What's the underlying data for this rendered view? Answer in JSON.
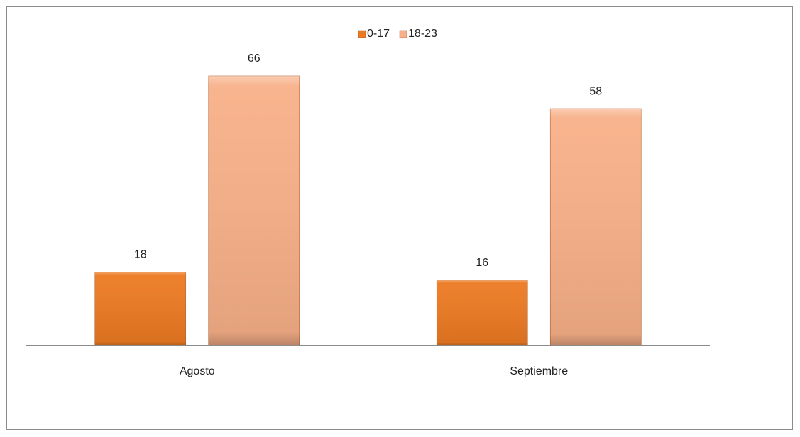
{
  "chart_data": {
    "type": "bar",
    "categories": [
      "Agosto",
      "Septiembre"
    ],
    "series": [
      {
        "name": "0-17",
        "color": "#ec7a22",
        "values": [
          18,
          16
        ]
      },
      {
        "name": "18-23",
        "color": "#f8b088",
        "values": [
          66,
          58
        ]
      }
    ],
    "legend": "top"
  }
}
